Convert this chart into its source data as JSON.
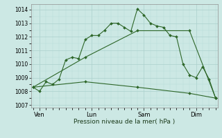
{
  "xlabel": "Pression niveau de la mer( hPa )",
  "bg_color": "#cce8e4",
  "grid_major_color": "#aad0cc",
  "grid_minor_color": "#b8dcd8",
  "line_color": "#2d6628",
  "ylim": [
    1006.8,
    1014.4
  ],
  "yticks": [
    1007,
    1008,
    1009,
    1010,
    1011,
    1012,
    1013,
    1014
  ],
  "xlim": [
    -0.3,
    28.3
  ],
  "day_positions": [
    1,
    9,
    17,
    25
  ],
  "day_labels": [
    "Ven",
    "Lun",
    "Sam",
    "Dim"
  ],
  "line1_x": [
    0,
    1,
    2,
    3,
    4,
    5,
    6,
    7,
    8,
    9,
    10,
    11,
    12,
    13,
    14,
    15,
    16,
    17,
    18,
    19,
    20,
    21,
    22,
    23,
    24,
    25,
    26,
    27,
    28
  ],
  "line1_y": [
    1008.3,
    1008.0,
    1008.7,
    1008.5,
    1008.9,
    1010.3,
    1010.5,
    1010.4,
    1011.8,
    1012.1,
    1012.1,
    1012.5,
    1013.0,
    1013.0,
    1012.7,
    1012.4,
    1014.05,
    1013.6,
    1013.0,
    1012.8,
    1012.7,
    1012.1,
    1012.0,
    1010.0,
    1009.2,
    1009.0,
    1009.8,
    1008.9,
    1007.5
  ],
  "line2_x": [
    0,
    8,
    16,
    24,
    28
  ],
  "line2_y": [
    1008.3,
    1010.5,
    1012.45,
    1012.45,
    1007.5
  ],
  "line3_x": [
    0,
    8,
    16,
    24,
    28
  ],
  "line3_y": [
    1008.3,
    1008.7,
    1008.3,
    1007.85,
    1007.5
  ],
  "ytick_fontsize": 5.5,
  "xtick_fontsize": 6,
  "xlabel_fontsize": 6.5
}
